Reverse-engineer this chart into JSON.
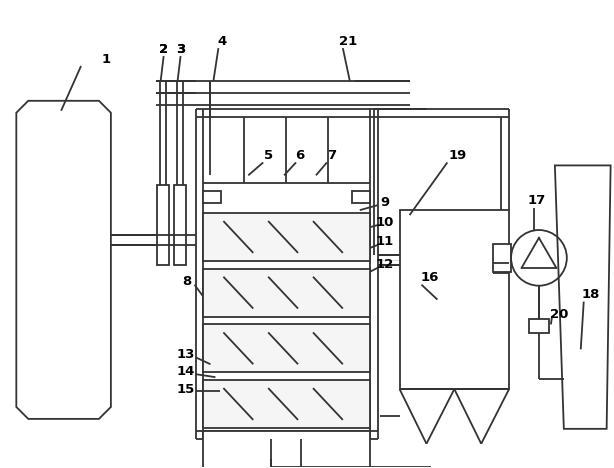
{
  "bg": "#ffffff",
  "lc": "#333333",
  "lw": 1.3,
  "fw": "bold",
  "fs": 9.5
}
